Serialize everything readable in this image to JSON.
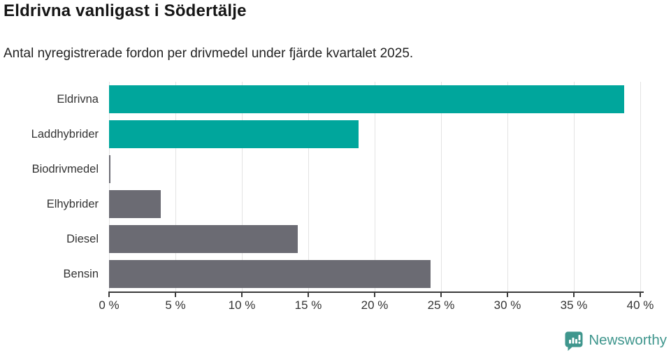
{
  "header": {
    "title": "Eldrivna vanligast i Södertälje",
    "subtitle": "Antal nyregistrerade fordon per drivmedel under fjärde kvartalet 2025."
  },
  "chart_data": {
    "type": "bar",
    "orientation": "horizontal",
    "title": "Eldrivna vanligast i Södertälje",
    "subtitle": "Antal nyregistrerade fordon per drivmedel under fjärde kvartalet 2025.",
    "categories": [
      "Eldrivna",
      "Laddhybrider",
      "Biodrivmedel",
      "Elhybrider",
      "Diesel",
      "Bensin"
    ],
    "values": [
      38.8,
      18.8,
      0.1,
      3.9,
      14.2,
      24.2
    ],
    "unit": "%",
    "xlabel": "",
    "ylabel": "",
    "xlim": [
      0,
      40
    ],
    "x_ticks": [
      0,
      5,
      10,
      15,
      20,
      25,
      30,
      35,
      40
    ],
    "x_tick_labels": [
      "0 %",
      "5 %",
      "10 %",
      "15 %",
      "20 %",
      "25 %",
      "30 %",
      "35 %",
      "40 %"
    ],
    "bar_colors": [
      "#00a69c",
      "#00a69c",
      "#6b6b73",
      "#6b6b73",
      "#6b6b73",
      "#6b6b73"
    ],
    "grid": true,
    "legend": "none"
  },
  "colors": {
    "accent_teal": "#00a69c",
    "neutral_gray": "#6b6b73",
    "gridline": "#e3e3e3",
    "axis": "#3b3b3b",
    "text": "#333333",
    "brand_teal": "#3f968d"
  },
  "footer": {
    "brand": "Newsworthy",
    "logo_icon": "bar-chart-speech-bubble-icon"
  }
}
